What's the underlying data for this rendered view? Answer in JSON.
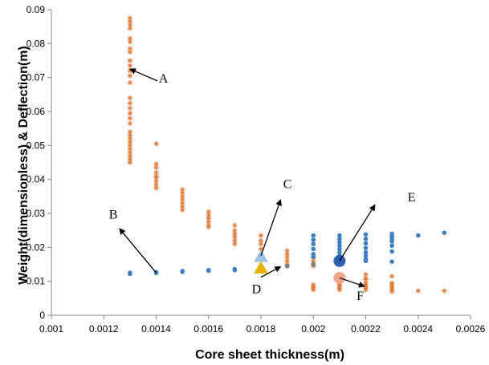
{
  "chart_data": {
    "type": "scatter",
    "title": "",
    "xlabel": "Core sheet thickness(m)",
    "ylabel": "Weight(dimensionless) & Deflection(m)",
    "xlim": [
      0.001,
      0.0026
    ],
    "ylim": [
      0,
      0.09
    ],
    "xticks": [
      "0.001",
      "0.0012",
      "0.0014",
      "0.0016",
      "0.0018",
      "0.002",
      "0.0022",
      "0.0024",
      "0.0026"
    ],
    "yticks": [
      "0",
      "0.01",
      "0.02",
      "0.03",
      "0.04",
      "0.05",
      "0.06",
      "0.07",
      "0.08",
      "0.09"
    ],
    "grid": false,
    "legend": "none",
    "colors": {
      "deflection": "#e07b39",
      "weight": "#3d7fc1",
      "highlight_weight": "#2f5fb3",
      "highlight_deflection": "#f0a58a",
      "triangle_c": "#9dc3e6",
      "triangle_d": "#e8b300",
      "gray": "#7f7f7f"
    },
    "series": [
      {
        "marker": "asterisk",
        "color": "#e07b39",
        "points": [
          [
            0.0013,
            0.0875
          ],
          [
            0.0013,
            0.0865
          ],
          [
            0.0013,
            0.0855
          ],
          [
            0.0013,
            0.0845
          ],
          [
            0.0013,
            0.0815
          ],
          [
            0.0013,
            0.0805
          ],
          [
            0.0013,
            0.0785
          ],
          [
            0.0013,
            0.0775
          ],
          [
            0.0013,
            0.075
          ],
          [
            0.0013,
            0.0735
          ],
          [
            0.0013,
            0.072
          ],
          [
            0.0013,
            0.0705
          ],
          [
            0.0013,
            0.0685
          ],
          [
            0.0013,
            0.064
          ],
          [
            0.0013,
            0.0625
          ],
          [
            0.0013,
            0.061
          ],
          [
            0.0013,
            0.0595
          ],
          [
            0.0013,
            0.058
          ],
          [
            0.0013,
            0.0565
          ],
          [
            0.0013,
            0.054
          ],
          [
            0.0013,
            0.053
          ],
          [
            0.0013,
            0.052
          ],
          [
            0.0013,
            0.051
          ],
          [
            0.0013,
            0.05
          ],
          [
            0.0013,
            0.049
          ],
          [
            0.0013,
            0.048
          ],
          [
            0.0013,
            0.047
          ],
          [
            0.0013,
            0.046
          ],
          [
            0.0013,
            0.045
          ],
          [
            0.0014,
            0.0505
          ],
          [
            0.0014,
            0.0445
          ],
          [
            0.0014,
            0.0435
          ],
          [
            0.0014,
            0.042
          ],
          [
            0.0014,
            0.041
          ],
          [
            0.0014,
            0.0405
          ],
          [
            0.0014,
            0.0395
          ],
          [
            0.0014,
            0.0385
          ],
          [
            0.0014,
            0.0375
          ],
          [
            0.0015,
            0.037
          ],
          [
            0.0015,
            0.036
          ],
          [
            0.0015,
            0.035
          ],
          [
            0.0015,
            0.034
          ],
          [
            0.0015,
            0.033
          ],
          [
            0.0015,
            0.032
          ],
          [
            0.0015,
            0.031
          ],
          [
            0.0016,
            0.0305
          ],
          [
            0.0016,
            0.0295
          ],
          [
            0.0016,
            0.0285
          ],
          [
            0.0016,
            0.0275
          ],
          [
            0.0016,
            0.0265
          ],
          [
            0.0016,
            0.026
          ],
          [
            0.0017,
            0.0265
          ],
          [
            0.0017,
            0.025
          ],
          [
            0.0017,
            0.024
          ],
          [
            0.0017,
            0.023
          ],
          [
            0.0017,
            0.022
          ],
          [
            0.0017,
            0.021
          ],
          [
            0.0018,
            0.0235
          ],
          [
            0.0018,
            0.022
          ],
          [
            0.0018,
            0.021
          ],
          [
            0.0018,
            0.0195
          ],
          [
            0.0019,
            0.019
          ],
          [
            0.0019,
            0.018
          ],
          [
            0.0019,
            0.017
          ],
          [
            0.0019,
            0.016
          ],
          [
            0.0019,
            0.015
          ],
          [
            0.002,
            0.017
          ],
          [
            0.002,
            0.016
          ],
          [
            0.002,
            0.0145
          ],
          [
            0.002,
            0.009
          ],
          [
            0.002,
            0.0085
          ],
          [
            0.002,
            0.008
          ],
          [
            0.002,
            0.0075
          ],
          [
            0.0021,
            0.012
          ],
          [
            0.0021,
            0.011
          ],
          [
            0.0021,
            0.0095
          ],
          [
            0.0021,
            0.009
          ],
          [
            0.0021,
            0.0085
          ],
          [
            0.0021,
            0.008
          ],
          [
            0.0021,
            0.0075
          ],
          [
            0.0022,
            0.012
          ],
          [
            0.0022,
            0.011
          ],
          [
            0.0022,
            0.0105
          ],
          [
            0.0022,
            0.0095
          ],
          [
            0.0022,
            0.009
          ],
          [
            0.0022,
            0.0085
          ],
          [
            0.0022,
            0.008
          ],
          [
            0.0022,
            0.0075
          ],
          [
            0.0023,
            0.0115
          ],
          [
            0.0023,
            0.0095
          ],
          [
            0.0023,
            0.009
          ],
          [
            0.0023,
            0.0085
          ],
          [
            0.0023,
            0.008
          ],
          [
            0.0023,
            0.0075
          ],
          [
            0.0023,
            0.007
          ],
          [
            0.0024,
            0.0072
          ],
          [
            0.0025,
            0.0072
          ]
        ]
      },
      {
        "marker": "circle",
        "color": "#3d7fc1",
        "points": [
          [
            0.0013,
            0.0122
          ],
          [
            0.0013,
            0.0125
          ],
          [
            0.0014,
            0.0127
          ],
          [
            0.0014,
            0.0125
          ],
          [
            0.0015,
            0.0128
          ],
          [
            0.0015,
            0.013
          ],
          [
            0.0016,
            0.0131
          ],
          [
            0.0016,
            0.0133
          ],
          [
            0.0017,
            0.0133
          ],
          [
            0.0017,
            0.0136
          ],
          [
            0.0018,
            0.0136
          ],
          [
            0.002,
            0.0235
          ],
          [
            0.002,
            0.0222
          ],
          [
            0.002,
            0.021
          ],
          [
            0.002,
            0.0195
          ],
          [
            0.002,
            0.018
          ],
          [
            0.002,
            0.0172
          ],
          [
            0.0021,
            0.0235
          ],
          [
            0.0021,
            0.0225
          ],
          [
            0.0021,
            0.0215
          ],
          [
            0.0021,
            0.0205
          ],
          [
            0.0021,
            0.0195
          ],
          [
            0.0021,
            0.0185
          ],
          [
            0.0021,
            0.0175
          ],
          [
            0.0021,
            0.0165
          ],
          [
            0.0022,
            0.0238
          ],
          [
            0.0022,
            0.0225
          ],
          [
            0.0022,
            0.0212
          ],
          [
            0.0022,
            0.0198
          ],
          [
            0.0022,
            0.0185
          ],
          [
            0.0022,
            0.0175
          ],
          [
            0.0022,
            0.0165
          ],
          [
            0.0022,
            0.016
          ],
          [
            0.0023,
            0.024
          ],
          [
            0.0023,
            0.0232
          ],
          [
            0.0023,
            0.0225
          ],
          [
            0.0023,
            0.0218
          ],
          [
            0.0023,
            0.0205
          ],
          [
            0.0023,
            0.0188
          ],
          [
            0.0023,
            0.0158
          ],
          [
            0.0024,
            0.0235
          ],
          [
            0.0025,
            0.0243
          ]
        ]
      },
      {
        "marker": "circle-gray",
        "color": "#7f7f7f",
        "points": [
          [
            0.0019,
            0.0145
          ],
          [
            0.002,
            0.015
          ]
        ]
      }
    ],
    "highlights": [
      {
        "label": "C",
        "marker": "triangle",
        "color": "#9dc3e6",
        "x": 0.0018,
        "y": 0.0172
      },
      {
        "label": "D",
        "marker": "triangle",
        "color": "#e8b300",
        "x": 0.0018,
        "y": 0.0138
      },
      {
        "label": "E",
        "marker": "big-circle",
        "color": "#2f5fb3",
        "x": 0.0021,
        "y": 0.016
      },
      {
        "label": "F",
        "marker": "big-circle",
        "color": "#f0a58a",
        "x": 0.0021,
        "y": 0.011
      }
    ],
    "annotations": [
      {
        "text": "A",
        "x": 0.00141,
        "y": 0.0685,
        "arrow_from": [
          0.001405,
          0.069
        ],
        "arrow_to": [
          0.0013,
          0.0725
        ]
      },
      {
        "text": "B",
        "x": 0.00122,
        "y": 0.0285,
        "arrow_from": [
          0.0014,
          0.0125
        ],
        "arrow_to": [
          0.00126,
          0.0255
        ]
      },
      {
        "text": "C",
        "x": 0.001885,
        "y": 0.0375,
        "arrow_from": [
          0.0018,
          0.0175
        ],
        "arrow_to": [
          0.001875,
          0.034
        ]
      },
      {
        "text": "D",
        "x": 0.001765,
        "y": 0.0065,
        "arrow_from": [
          0.0018,
          0.0112
        ],
        "arrow_to": [
          0.001875,
          0.0143
        ]
      },
      {
        "text": "E",
        "x": 0.00236,
        "y": 0.0335,
        "arrow_from": [
          0.0021,
          0.016
        ],
        "arrow_to": [
          0.002235,
          0.0325
        ]
      },
      {
        "text": "F",
        "x": 0.002165,
        "y": 0.0045,
        "arrow_from": [
          0.0021,
          0.011
        ],
        "arrow_to": [
          0.002195,
          0.0085
        ]
      }
    ]
  }
}
